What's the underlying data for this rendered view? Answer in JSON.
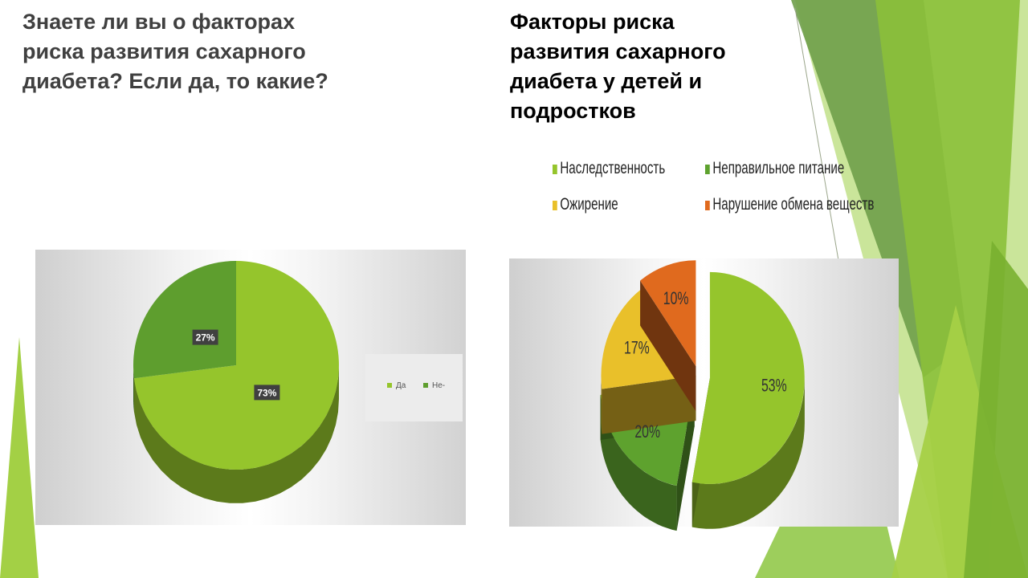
{
  "slide": {
    "left_title": "Знаете ли вы о факторах\nриска развития сахарного\nдиабета? Если да, то какие?",
    "right_title": "Факторы риска\nразвития сахарного\nдиабета у детей и\nподростков"
  },
  "colors": {
    "deco_green_light": "#9acd32",
    "deco_green_dark": "#5f9632"
  },
  "chart_data": [
    {
      "type": "pie",
      "title": "",
      "categories": [
        "Да",
        "Не-"
      ],
      "values": [
        73,
        27
      ],
      "data_labels": [
        "73%",
        "27%"
      ],
      "colors": [
        "#95c52c",
        "#5e9e2e"
      ],
      "legend_position": "right"
    },
    {
      "type": "pie",
      "title": "",
      "categories": [
        "Наследственность",
        "Неправильное питание",
        "Ожирение",
        "Нарушение обмена веществ"
      ],
      "values": [
        53,
        20,
        17,
        10
      ],
      "data_labels": [
        "53%",
        "20%",
        "17%",
        "10%"
      ],
      "colors": [
        "#95c52c",
        "#5ea22e",
        "#e9c02a",
        "#e06a1e"
      ],
      "legend_position": "top"
    }
  ]
}
